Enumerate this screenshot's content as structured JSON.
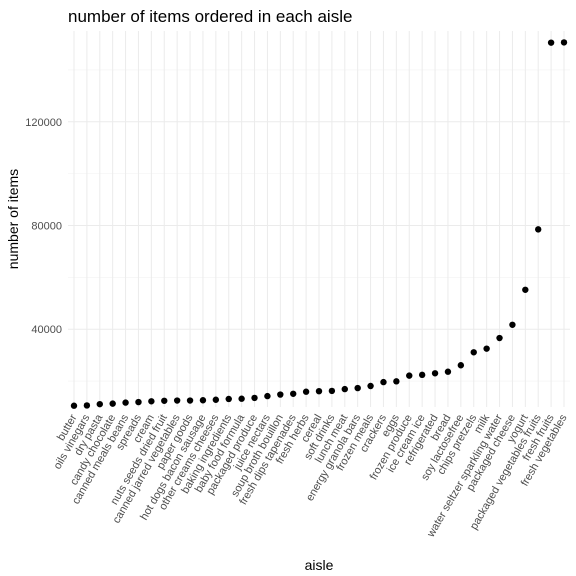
{
  "chart_data": {
    "type": "scatter",
    "title": "number of items ordered in each aisle",
    "xlabel": "aisle",
    "ylabel": "number of items",
    "ylim": [
      10000,
      155000
    ],
    "yticks": [
      40000,
      80000,
      120000
    ],
    "ytick_labels": [
      "40000",
      "80000",
      "120000"
    ],
    "grid": true,
    "point_color": "#000000",
    "series": [
      {
        "categories": [
          "butter",
          "oils vinegars",
          "dry pasta",
          "candy chocolate",
          "canned meals beans",
          "spreads",
          "cream",
          "nuts seeds dried fruit",
          "canned jarred vegetables",
          "paper goods",
          "hot dogs bacon sausage",
          "other creams cheeses",
          "baking ingredients",
          "baby food formula",
          "packaged produce",
          "juice nectars",
          "soup broth bouillon",
          "fresh dips tapenades",
          "fresh herbs",
          "cereal",
          "soft drinks",
          "lunch meat",
          "energy granola bars",
          "frozen meals",
          "crackers",
          "eggs",
          "frozen produce",
          "ice cream ice",
          "refrigerated",
          "bread",
          "soy lactosefree",
          "chips pretzels",
          "milk",
          "water seltzer sparkling water",
          "packaged cheese",
          "yogurt",
          "packaged vegetables fruits",
          "fresh fruits",
          "fresh vegetables"
        ],
        "values": [
          10500,
          10600,
          11100,
          11300,
          11700,
          11900,
          12200,
          12400,
          12500,
          12500,
          12600,
          12800,
          13100,
          13200,
          13500,
          14200,
          14800,
          15100,
          15900,
          16100,
          16200,
          16900,
          17300,
          18100,
          19600,
          19900,
          22100,
          22400,
          23000,
          23600,
          26100,
          31100,
          32500,
          36600,
          41700,
          55200,
          78500,
          150500,
          150600
        ]
      }
    ]
  }
}
